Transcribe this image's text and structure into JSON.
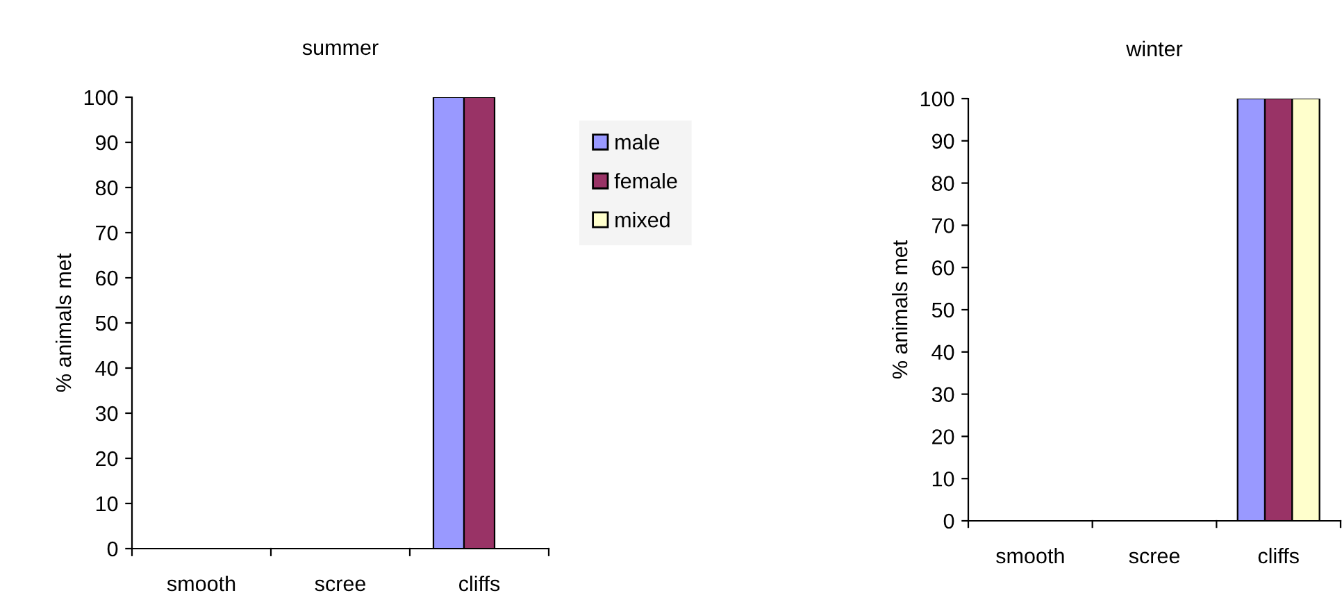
{
  "chart_data": [
    {
      "type": "bar",
      "title": "summer",
      "ylabel": "% animals met",
      "categories": [
        "smooth",
        "scree",
        "cliffs"
      ],
      "ylim": [
        0,
        100
      ],
      "yticks": [
        0,
        10,
        20,
        30,
        40,
        50,
        60,
        70,
        80,
        90,
        100
      ],
      "legend": "right",
      "series": [
        {
          "name": "male",
          "color": "#9999ff",
          "values": [
            0,
            0,
            100
          ]
        },
        {
          "name": "female",
          "color": "#993366",
          "values": [
            0,
            0,
            100
          ]
        },
        {
          "name": "mixed",
          "color": "#ffffcc",
          "values": [
            0,
            0,
            0
          ]
        }
      ]
    },
    {
      "type": "bar",
      "title": "winter",
      "ylabel": "% animals met",
      "categories": [
        "smooth",
        "scree",
        "cliffs"
      ],
      "ylim": [
        0,
        100
      ],
      "yticks": [
        0,
        10,
        20,
        30,
        40,
        50,
        60,
        70,
        80,
        90,
        100
      ],
      "series": [
        {
          "color": "#9999ff",
          "values": [
            0,
            0,
            100
          ]
        },
        {
          "color": "#993366",
          "values": [
            0,
            0,
            100
          ]
        },
        {
          "color": "#ffffcc",
          "values": [
            0,
            0,
            100
          ]
        }
      ]
    }
  ]
}
